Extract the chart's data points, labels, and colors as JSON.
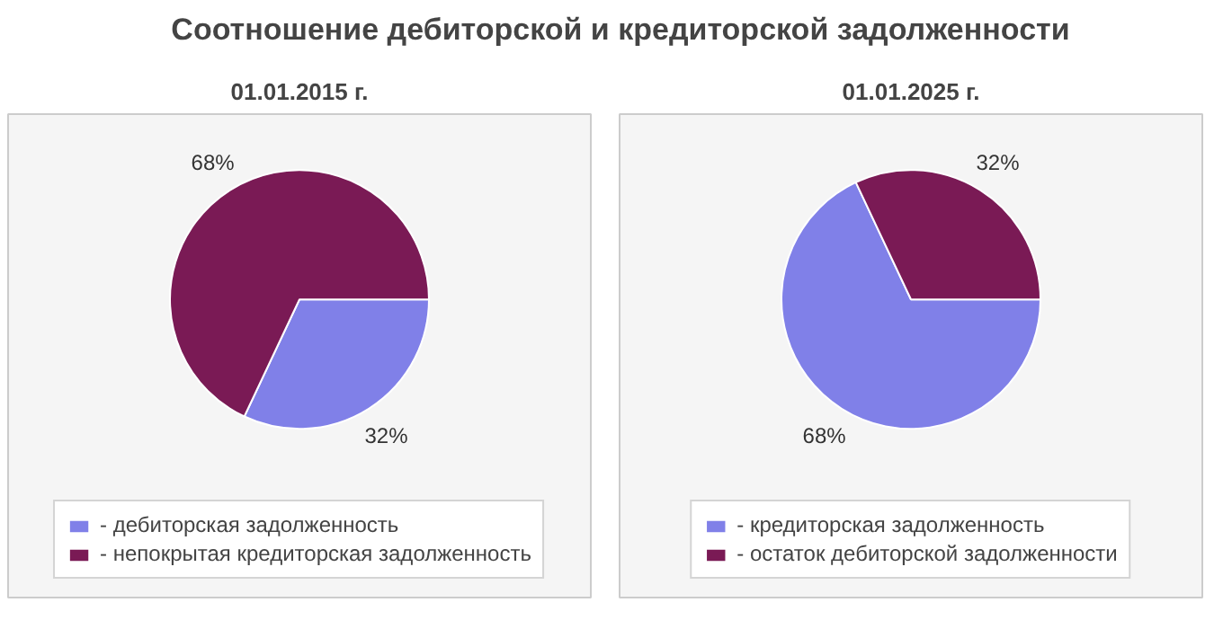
{
  "chart_data": [
    {
      "type": "pie",
      "title": "Соотношение дебиторской и кредиторской задолженности",
      "subtitle": "01.01.2015 г.",
      "categories": [
        "- дебиторская задолженность",
        "- непокрытая кредиторская задолженность"
      ],
      "values": [
        32,
        68
      ],
      "colors": [
        "#8080e8",
        "#7a1a55"
      ],
      "value_labels": [
        "32%",
        "68%"
      ],
      "legend": "bottom"
    },
    {
      "type": "pie",
      "subtitle": "01.01.2025 г.",
      "categories": [
        "- кредиторская задолженность",
        "- остаток дебиторской задолженности"
      ],
      "values": [
        68,
        32
      ],
      "colors": [
        "#8080e8",
        "#7a1a55"
      ],
      "value_labels": [
        "68%",
        "32%"
      ],
      "legend": "bottom"
    }
  ]
}
